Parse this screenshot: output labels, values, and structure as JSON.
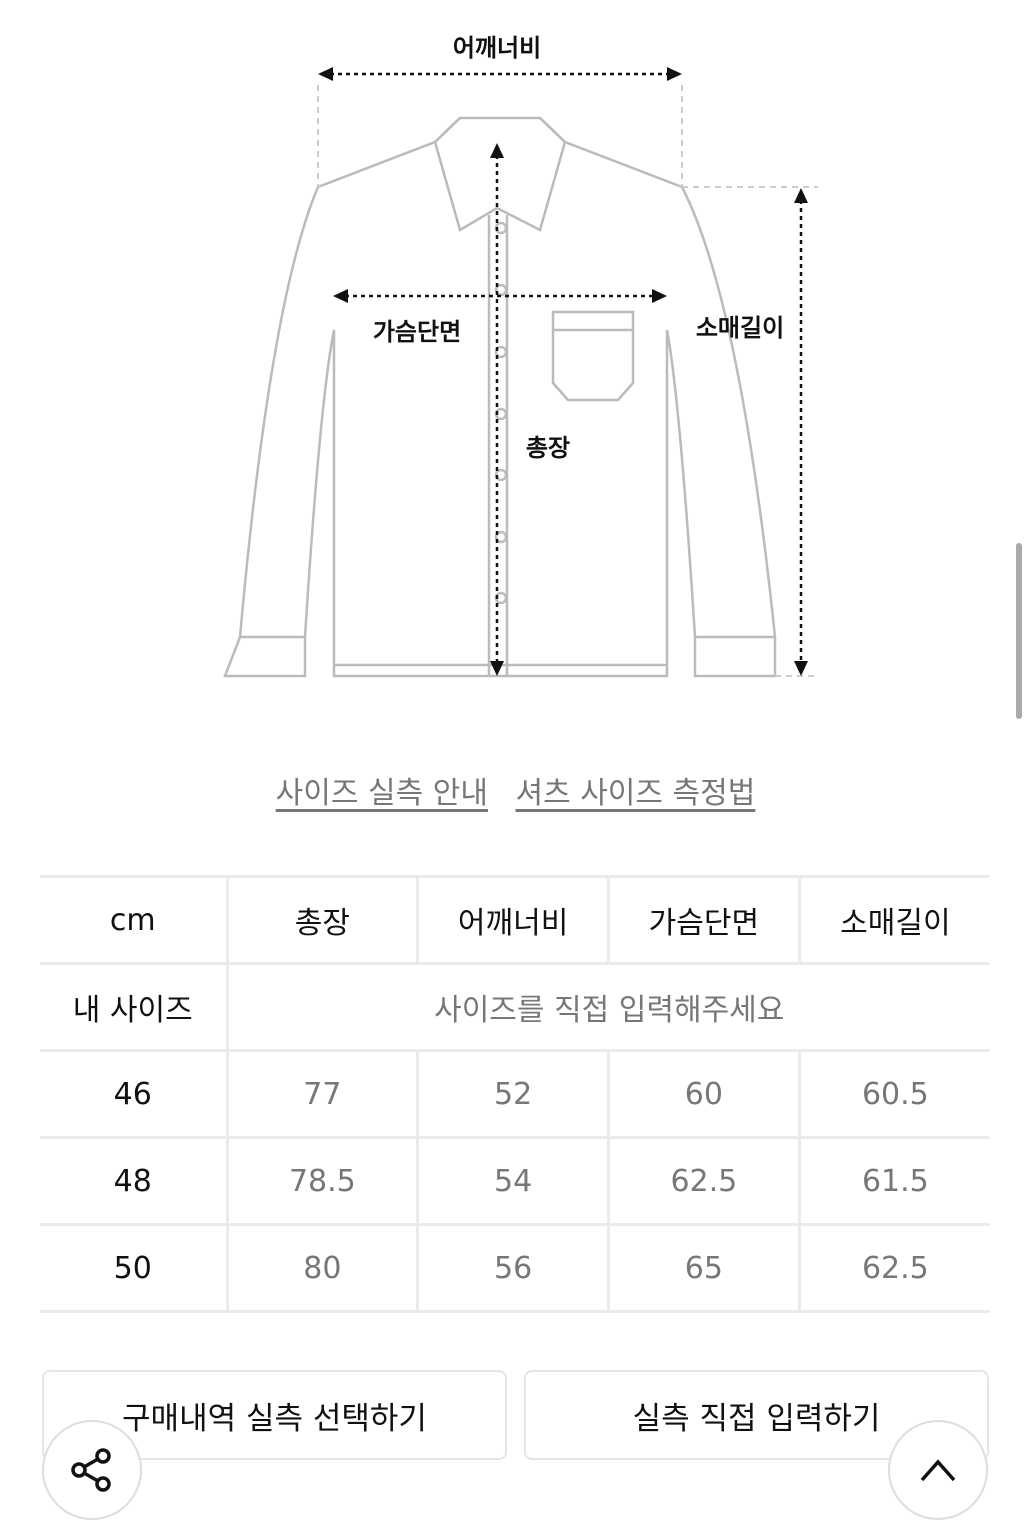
{
  "diagram": {
    "labels": {
      "shoulder": "어깨너비",
      "chest": "가슴단면",
      "sleeve": "소매길이",
      "length": "총장"
    }
  },
  "links": [
    "사이즈 실측 안내",
    "셔츠 사이즈 측정법"
  ],
  "table": {
    "headers": [
      "cm",
      "총장",
      "어깨너비",
      "가슴단면",
      "소매길이"
    ],
    "my_size": {
      "label": "내 사이즈",
      "placeholder": "사이즈를 직접 입력해주세요"
    },
    "rows": [
      {
        "size": "46",
        "values": [
          "77",
          "52",
          "60",
          "60.5"
        ]
      },
      {
        "size": "48",
        "values": [
          "78.5",
          "54",
          "62.5",
          "61.5"
        ]
      },
      {
        "size": "50",
        "values": [
          "80",
          "56",
          "65",
          "62.5"
        ]
      }
    ]
  },
  "buttons": {
    "purchase": "구매내역 실측 선택하기",
    "manual": "실측 직접 입력하기"
  },
  "icons": {
    "share": "share-icon",
    "top": "chevron-up-icon"
  }
}
